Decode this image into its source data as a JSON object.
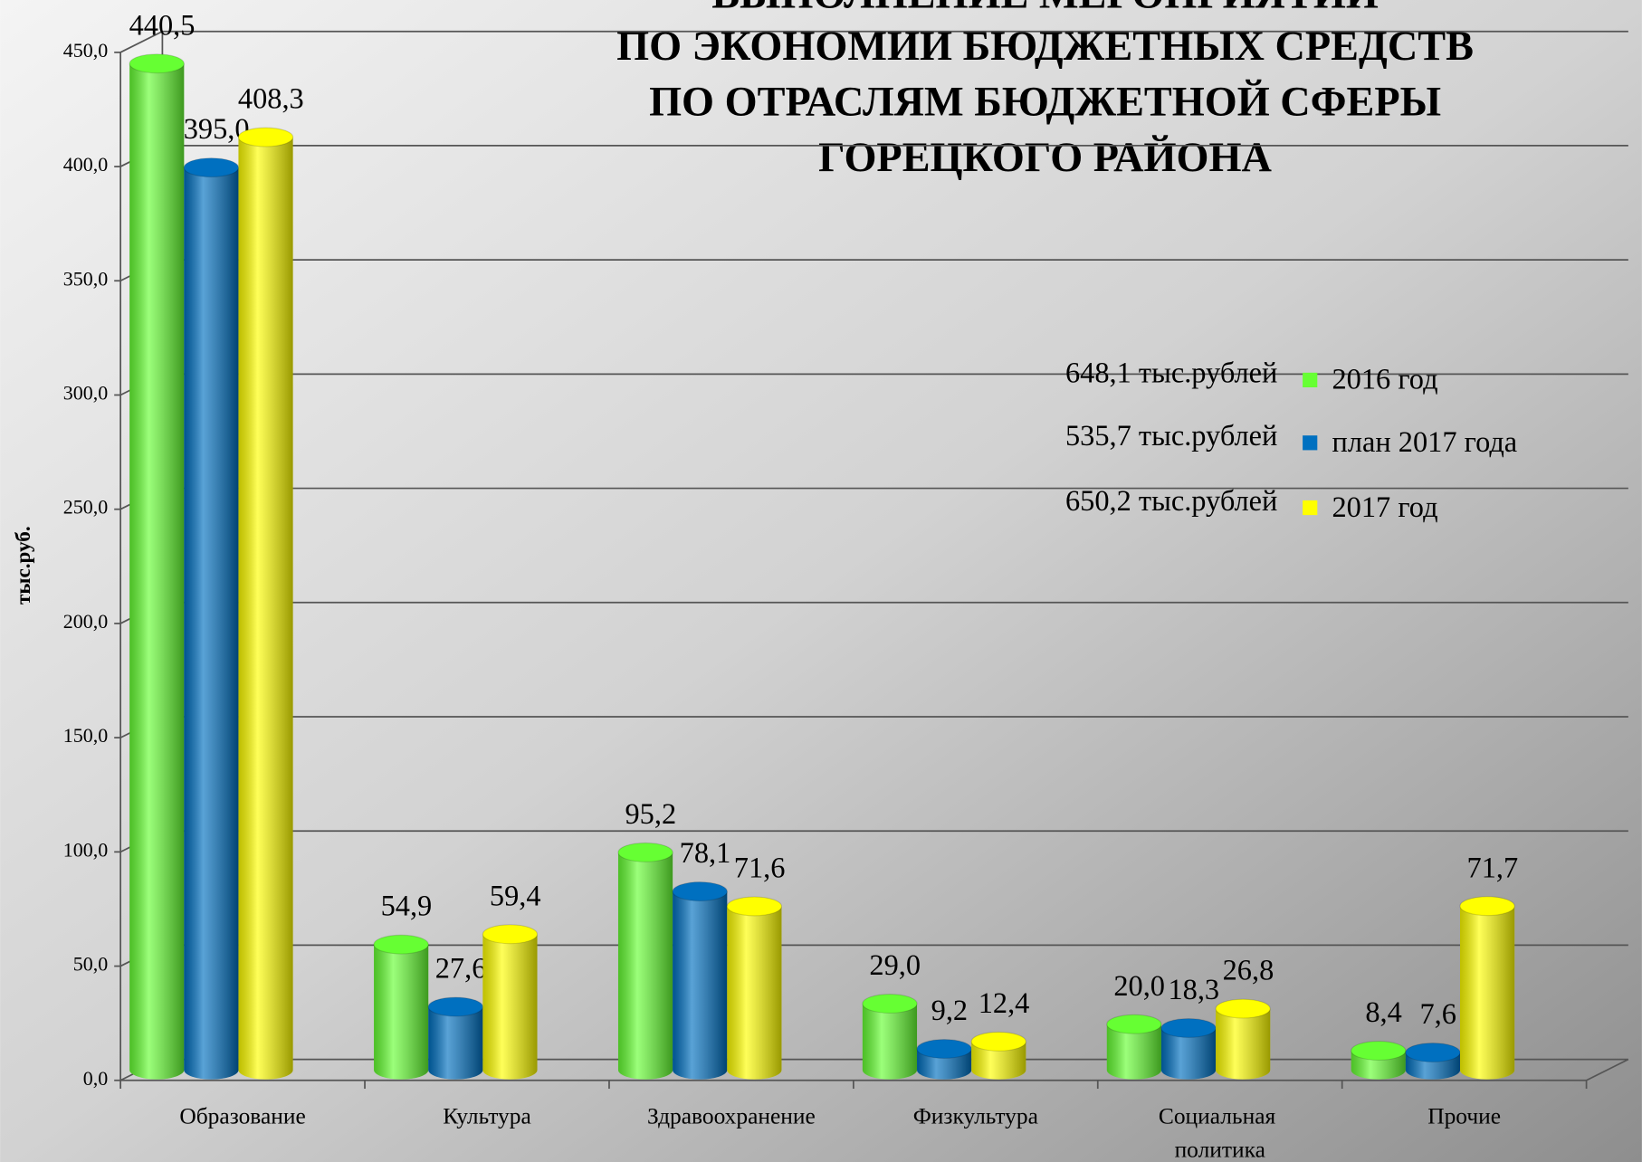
{
  "chart_data": {
    "type": "bar",
    "title": [
      "ВЫПОЛНЕНИЕ МЕРОПРИЯТИЙ",
      "ПО ЭКОНОМИИ БЮДЖЕТНЫХ СРЕДСТВ",
      "ПО ОТРАСЛЯМ БЮДЖЕТНОЙ СФЕРЫ",
      "ГОРЕЦКОГО РАЙОНА"
    ],
    "y_label": "тыс.руб.",
    "categories": [
      "Образование",
      "Культура",
      "Здравоохранение",
      "Физкультура",
      "Социальная политика",
      "Прочие"
    ],
    "series": [
      {
        "name": "2016 год",
        "color": "#66ff33",
        "total_label": "648,1  тыс.рублей",
        "values": [
          440.5,
          54.9,
          95.2,
          29.0,
          20.0,
          8.4
        ],
        "value_labels": [
          "440,5",
          "54,9",
          "95,2",
          "29,0",
          "20,0",
          "8,4"
        ]
      },
      {
        "name": "план 2017 года",
        "color": "#0070c0",
        "total_label": "535,7 тыс.рублей",
        "values": [
          395.0,
          27.6,
          78.1,
          9.2,
          18.3,
          7.6
        ],
        "value_labels": [
          "395,0",
          "27,6",
          "78,1",
          "9,2",
          "18,3",
          "7,6"
        ]
      },
      {
        "name": "2017 год",
        "color": "#ffff00",
        "total_label": "650,2 тыс.рублей",
        "values": [
          408.3,
          59.4,
          71.6,
          12.4,
          26.8,
          71.7
        ],
        "value_labels": [
          "408,3",
          "59,4",
          "71,6",
          "12,4",
          "26,8",
          "71,7"
        ]
      }
    ],
    "ylim": [
      0,
      450
    ],
    "yticks": [
      {
        "value": 0,
        "label": "0,0"
      },
      {
        "value": 50,
        "label": "50,0"
      },
      {
        "value": 100,
        "label": "100,0"
      },
      {
        "value": 150,
        "label": "150,0"
      },
      {
        "value": 200,
        "label": "200,0"
      },
      {
        "value": 250,
        "label": "250,0"
      },
      {
        "value": 300,
        "label": "300,0"
      },
      {
        "value": 350,
        "label": "350,0"
      },
      {
        "value": 400,
        "label": "400,0"
      },
      {
        "value": 450,
        "label": "450,0"
      }
    ],
    "grid": true
  }
}
